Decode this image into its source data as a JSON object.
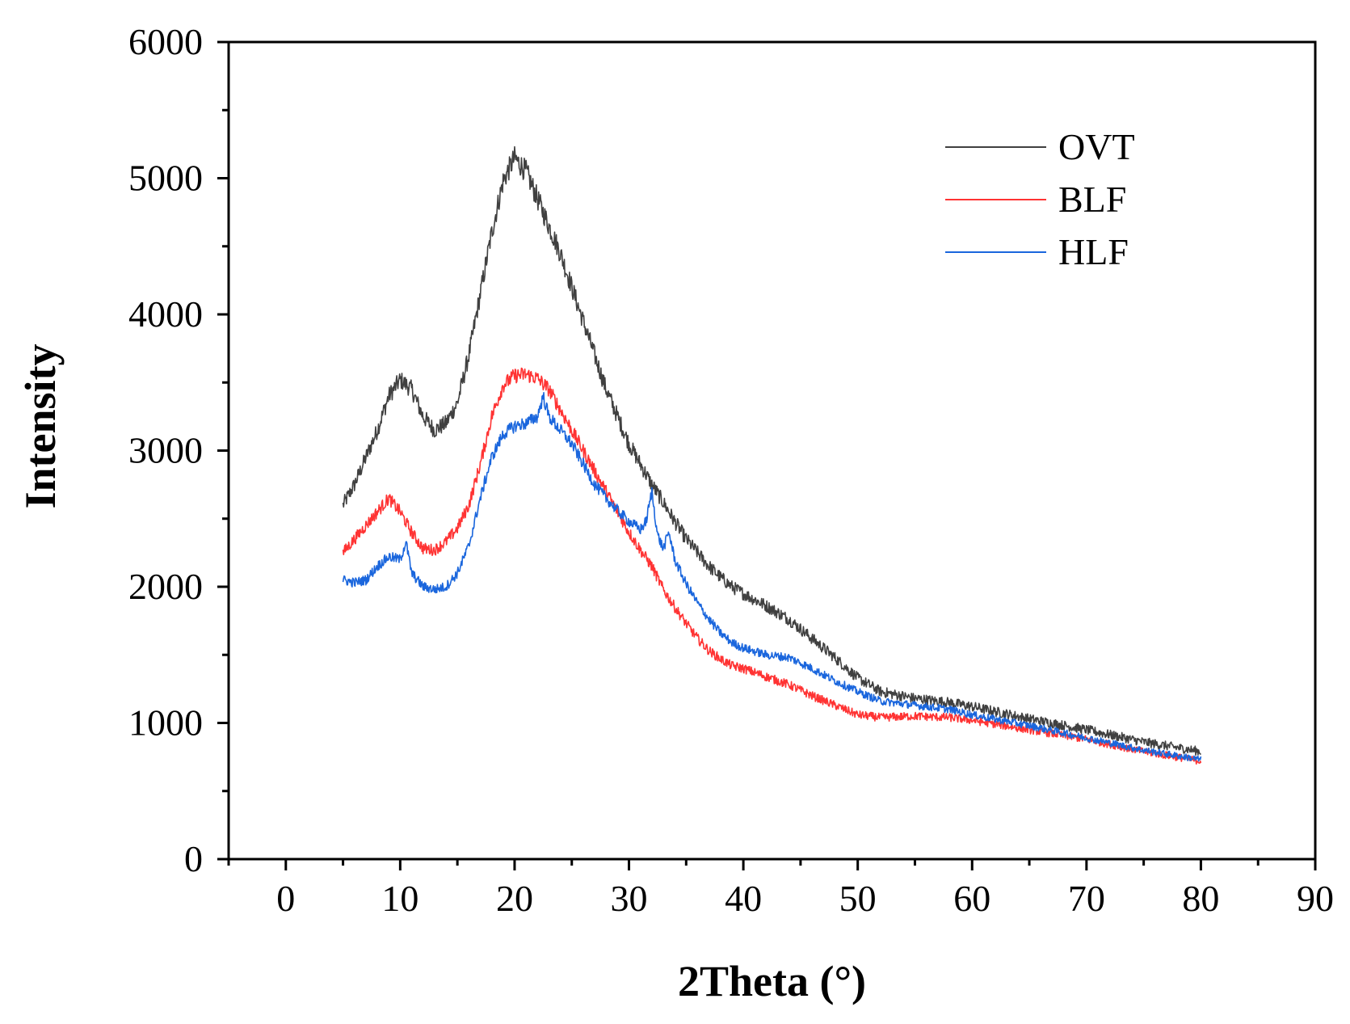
{
  "chart_data": {
    "type": "line",
    "title": "",
    "xlabel": "2Theta (°)",
    "ylabel": "Intensity",
    "xlim": [
      -5,
      90
    ],
    "ylim": [
      0,
      6000
    ],
    "xticks": [
      0,
      10,
      20,
      30,
      40,
      50,
      60,
      70,
      80,
      90
    ],
    "yticks": [
      0,
      1000,
      2000,
      3000,
      4000,
      5000,
      6000
    ],
    "legend_position": "top-right",
    "grid": false,
    "series": [
      {
        "name": "OVT",
        "color": "#404040",
        "noise": 60,
        "x": [
          5,
          6,
          7,
          8,
          9,
          10,
          11,
          12,
          13,
          14,
          15,
          16,
          17,
          18,
          19,
          20,
          21,
          22,
          23,
          24,
          25,
          26,
          27,
          28,
          29,
          30,
          31,
          32,
          33,
          34,
          35,
          36,
          37,
          38,
          39,
          40,
          42,
          44,
          46,
          48,
          50,
          52,
          55,
          58,
          60,
          65,
          70,
          75,
          80
        ],
        "y": [
          2600,
          2750,
          2950,
          3150,
          3400,
          3520,
          3450,
          3250,
          3150,
          3200,
          3350,
          3700,
          4150,
          4600,
          4980,
          5150,
          5050,
          4850,
          4650,
          4450,
          4200,
          3950,
          3700,
          3450,
          3250,
          3050,
          2900,
          2750,
          2620,
          2480,
          2350,
          2250,
          2150,
          2070,
          2000,
          1950,
          1860,
          1760,
          1620,
          1480,
          1330,
          1230,
          1180,
          1150,
          1120,
          1030,
          950,
          860,
          790
        ]
      },
      {
        "name": "BLF",
        "color": "#ff3333",
        "noise": 50,
        "x": [
          5,
          6,
          7,
          8,
          9,
          10,
          11,
          12,
          13,
          14,
          15,
          16,
          17,
          18,
          19,
          20,
          21,
          22,
          23,
          24,
          25,
          26,
          27,
          28,
          29,
          30,
          31,
          32,
          33,
          34,
          35,
          36,
          37,
          38,
          39,
          40,
          42,
          44,
          46,
          48,
          50,
          52,
          55,
          58,
          60,
          65,
          70,
          75,
          80
        ],
        "y": [
          2250,
          2350,
          2450,
          2550,
          2650,
          2550,
          2400,
          2280,
          2270,
          2330,
          2430,
          2600,
          2900,
          3250,
          3480,
          3550,
          3560,
          3530,
          3450,
          3300,
          3150,
          3000,
          2850,
          2700,
          2550,
          2400,
          2270,
          2150,
          1980,
          1850,
          1730,
          1620,
          1530,
          1470,
          1420,
          1400,
          1340,
          1280,
          1200,
          1130,
          1060,
          1040,
          1050,
          1040,
          1020,
          950,
          880,
          790,
          720
        ]
      },
      {
        "name": "HLF",
        "color": "#1a66dd",
        "noise": 45,
        "x": [
          5,
          6,
          7,
          8,
          9,
          10,
          10.5,
          11,
          12,
          13,
          14,
          15,
          16,
          17,
          18,
          19,
          20,
          21,
          22,
          22.5,
          23,
          24,
          25,
          26,
          27,
          28,
          29,
          30,
          31,
          31.5,
          32,
          32.5,
          33,
          33.5,
          34,
          35,
          36,
          37,
          38,
          39,
          40,
          42,
          44,
          46,
          48,
          50,
          52,
          55,
          58,
          60,
          65,
          70,
          75,
          80
        ],
        "y": [
          2050,
          2030,
          2050,
          2150,
          2220,
          2200,
          2330,
          2100,
          2000,
          1980,
          2000,
          2100,
          2300,
          2650,
          2950,
          3120,
          3180,
          3200,
          3250,
          3400,
          3250,
          3150,
          3050,
          2900,
          2750,
          2650,
          2560,
          2480,
          2420,
          2480,
          2700,
          2380,
          2280,
          2400,
          2200,
          2020,
          1880,
          1760,
          1660,
          1590,
          1550,
          1500,
          1480,
          1400,
          1310,
          1230,
          1160,
          1130,
          1100,
          1060,
          980,
          890,
          800,
          730
        ]
      }
    ]
  }
}
